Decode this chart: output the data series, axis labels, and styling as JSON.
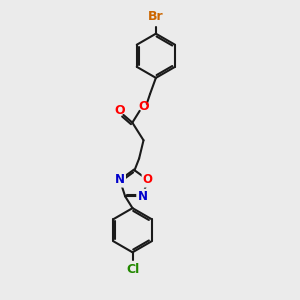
{
  "background_color": "#ebebeb",
  "bond_color": "#1a1a1a",
  "bond_width": 1.5,
  "br_color": "#cc6600",
  "cl_color": "#228800",
  "o_color": "#ff0000",
  "n_color": "#0000cc",
  "label_fontsize": 9.0,
  "figsize": [
    3.0,
    3.0
  ],
  "dpi": 100,
  "xlim": [
    0,
    10
  ],
  "ylim": [
    0,
    10
  ]
}
